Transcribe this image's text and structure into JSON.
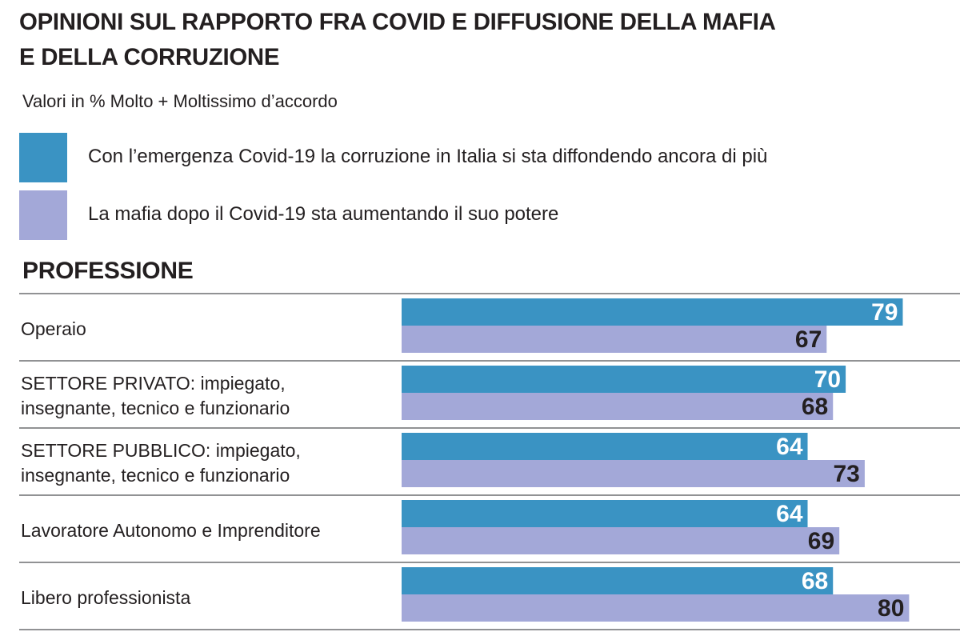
{
  "chart_data": {
    "type": "bar",
    "orientation": "horizontal",
    "title": "OPINIONI SUL RAPPORTO FRA COVID E DIFFUSIONE DELLA MAFIA E DELLA CORRUZIONE",
    "title_lines": [
      "OPINIONI SUL RAPPORTO FRA COVID E DIFFUSIONE DELLA MAFIA",
      "E DELLA CORRUZIONE"
    ],
    "subtitle": "Valori in % Molto + Moltissimo d’accordo",
    "section_title": "PROFESSIONE",
    "categories": [
      "Operaio",
      "SETTORE PRIVATO: impiegato, insegnante, tecnico e funzionario",
      "SETTORE PUBBLICO: impiegato, insegnante, tecnico e funzionario",
      "Lavoratore Autonomo e Imprenditore",
      "Libero professionista"
    ],
    "category_lines": [
      [
        "Operaio"
      ],
      [
        "SETTORE PRIVATO: impiegato,",
        "insegnante, tecnico e funzionario"
      ],
      [
        "SETTORE PUBBLICO: impiegato,",
        "insegnante, tecnico e funzionario"
      ],
      [
        "Lavoratore Autonomo e Imprenditore"
      ],
      [
        "Libero professionista"
      ]
    ],
    "series": [
      {
        "name": "Con l’emergenza Covid-19 la corruzione in Italia si sta diffondendo ancora di più",
        "values": [
          79,
          70,
          64,
          64,
          68
        ],
        "color": "#3a93c3",
        "label_color": "#ffffff"
      },
      {
        "name": "La mafia dopo il Covid-19 sta aumentando il suo potere",
        "values": [
          67,
          68,
          73,
          69,
          80
        ],
        "color": "#a3a8d8",
        "label_color": "#231f20"
      }
    ],
    "xlim": [
      0,
      100
    ],
    "grid": false,
    "legend_position": "top"
  }
}
